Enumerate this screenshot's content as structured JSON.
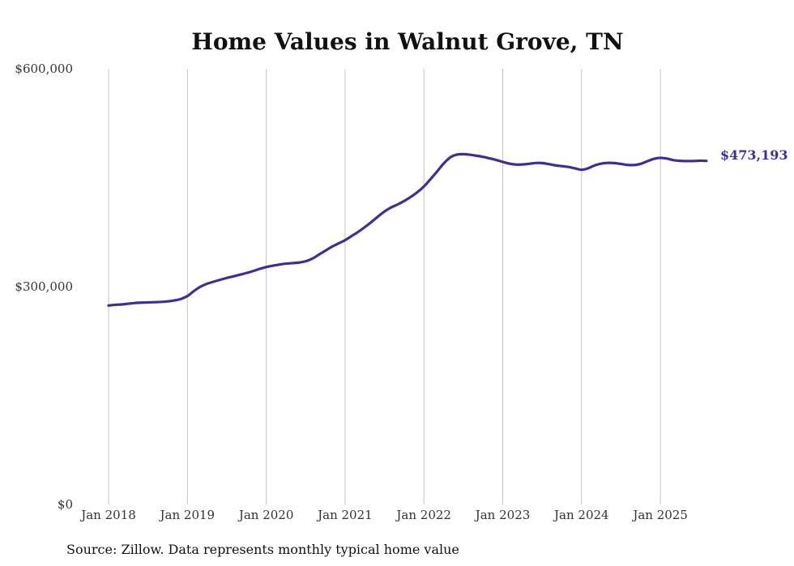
{
  "chart_data": {
    "type": "line",
    "title": "Home Values in Walnut Grove, TN",
    "xlabel": "",
    "ylabel": "",
    "x_ticks": [
      "Jan 2018",
      "Jan 2019",
      "Jan 2020",
      "Jan 2021",
      "Jan 2022",
      "Jan 2023",
      "Jan 2024",
      "Jan 2025"
    ],
    "y_ticks": [
      "$0",
      "$300,000",
      "$600,000"
    ],
    "y_tick_values": [
      0,
      300000,
      600000
    ],
    "ylim": [
      0,
      600000
    ],
    "xlim": [
      "2018-01",
      "2025-08"
    ],
    "grid": "vertical lines at each January",
    "legend": "none",
    "series": [
      {
        "color": "#3b3192",
        "x": [
          "2018-01",
          "2018-02",
          "2018-03",
          "2018-04",
          "2018-05",
          "2018-06",
          "2018-07",
          "2018-08",
          "2018-09",
          "2018-10",
          "2018-11",
          "2018-12",
          "2019-01",
          "2019-02",
          "2019-03",
          "2019-04",
          "2019-05",
          "2019-06",
          "2019-07",
          "2019-08",
          "2019-09",
          "2019-10",
          "2019-11",
          "2019-12",
          "2020-01",
          "2020-02",
          "2020-03",
          "2020-04",
          "2020-05",
          "2020-06",
          "2020-07",
          "2020-08",
          "2020-09",
          "2020-10",
          "2020-11",
          "2020-12",
          "2021-01",
          "2021-02",
          "2021-03",
          "2021-04",
          "2021-05",
          "2021-06",
          "2021-07",
          "2021-08",
          "2021-09",
          "2021-10",
          "2021-11",
          "2021-12",
          "2022-01",
          "2022-02",
          "2022-03",
          "2022-04",
          "2022-05",
          "2022-06",
          "2022-07",
          "2022-08",
          "2022-09",
          "2022-10",
          "2022-11",
          "2022-12",
          "2023-01",
          "2023-02",
          "2023-03",
          "2023-04",
          "2023-05",
          "2023-06",
          "2023-07",
          "2023-08",
          "2023-09",
          "2023-10",
          "2023-11",
          "2023-12",
          "2024-01",
          "2024-02",
          "2024-03",
          "2024-04",
          "2024-05",
          "2024-06",
          "2024-07",
          "2024-08",
          "2024-09",
          "2024-10",
          "2024-11",
          "2024-12",
          "2025-01",
          "2025-02",
          "2025-03",
          "2025-04",
          "2025-05",
          "2025-06",
          "2025-07",
          "2025-08"
        ],
        "values": [
          274000,
          275000,
          275500,
          276500,
          277500,
          278000,
          278300,
          278600,
          279000,
          279700,
          281000,
          283000,
          287000,
          294000,
          300000,
          304000,
          306800,
          309500,
          312000,
          314200,
          316500,
          318800,
          321500,
          324500,
          327000,
          328800,
          330500,
          331700,
          332400,
          333200,
          335000,
          338500,
          344000,
          349500,
          355000,
          359500,
          364000,
          369700,
          375500,
          382000,
          389000,
          396500,
          403500,
          409000,
          413200,
          418000,
          423600,
          430000,
          438000,
          448000,
          458500,
          469500,
          478000,
          481800,
          482500,
          481700,
          480300,
          478800,
          476700,
          474500,
          471800,
          469500,
          468200,
          468300,
          469200,
          470300,
          470200,
          468800,
          467000,
          466000,
          464800,
          462900,
          461000,
          463000,
          467000,
          469500,
          470400,
          470200,
          469000,
          467700,
          467500,
          469200,
          472700,
          476000,
          477400,
          476400,
          474200,
          473300,
          473000,
          473000,
          473500,
          473193
        ]
      }
    ],
    "end_label": "$473,193",
    "source": "Source: Zillow. Data represents monthly typical home value"
  }
}
